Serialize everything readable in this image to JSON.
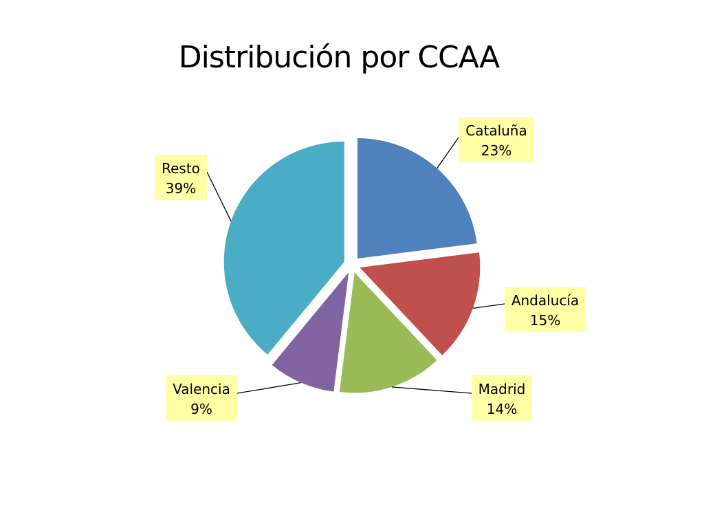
{
  "chart_data": {
    "type": "pie",
    "title": "Distribución por CCAA",
    "slices": [
      {
        "name": "Cataluña",
        "value": 23,
        "label": "23%",
        "color": "#4F81BD"
      },
      {
        "name": "Andalucía",
        "value": 15,
        "label": "15%",
        "color": "#C0504D"
      },
      {
        "name": "Madrid",
        "value": 14,
        "label": "14%",
        "color": "#9BBB59"
      },
      {
        "name": "Valencia",
        "value": 9,
        "label": "9%",
        "color": "#8064A2"
      },
      {
        "name": "Resto",
        "value": 39,
        "label": "39%",
        "color": "#4BACC6"
      }
    ],
    "start_angle": "12 o'clock",
    "direction": "clockwise",
    "exploded": true,
    "label_background": "#FFFFA6"
  }
}
